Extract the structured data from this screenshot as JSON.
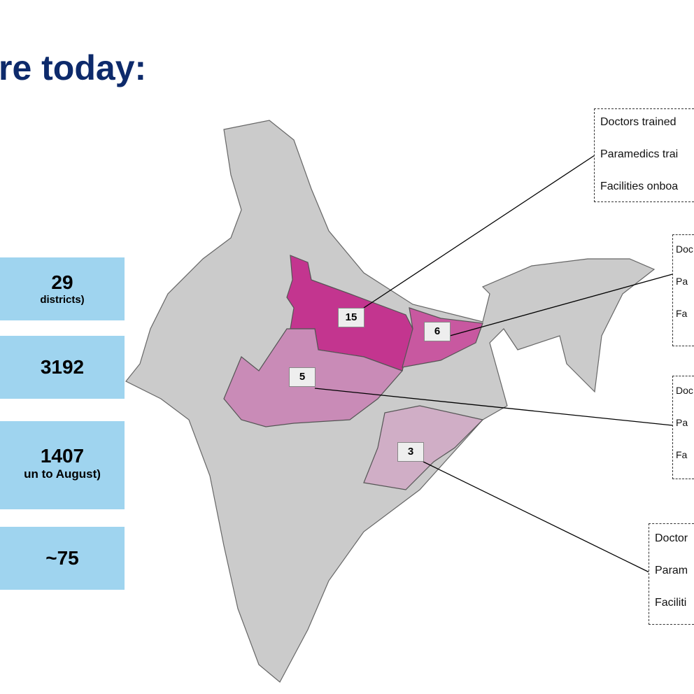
{
  "title": "re today:",
  "stats": [
    {
      "value": "29",
      "note": "districts)"
    },
    {
      "value": "3192",
      "note": ""
    },
    {
      "value": "1407",
      "note": "un to August)"
    },
    {
      "value": "~75",
      "note": ""
    }
  ],
  "regions": [
    {
      "label": "15",
      "color": "#c3358f"
    },
    {
      "label": "6",
      "color": "#c858a0"
    },
    {
      "label": "5",
      "color": "#c98bb7"
    },
    {
      "label": "3",
      "color": "#d0aec6"
    }
  ],
  "callouts": [
    {
      "lines": [
        "Doctors trained",
        "Paramedics trai",
        "Facilities onboa"
      ]
    },
    {
      "lines": [
        "Doc",
        "Pa",
        "Fa"
      ]
    },
    {
      "lines": [
        "Doc",
        "Pa",
        "Fa"
      ]
    },
    {
      "lines": [
        "Doctor",
        "Param",
        "Faciliti"
      ]
    }
  ]
}
